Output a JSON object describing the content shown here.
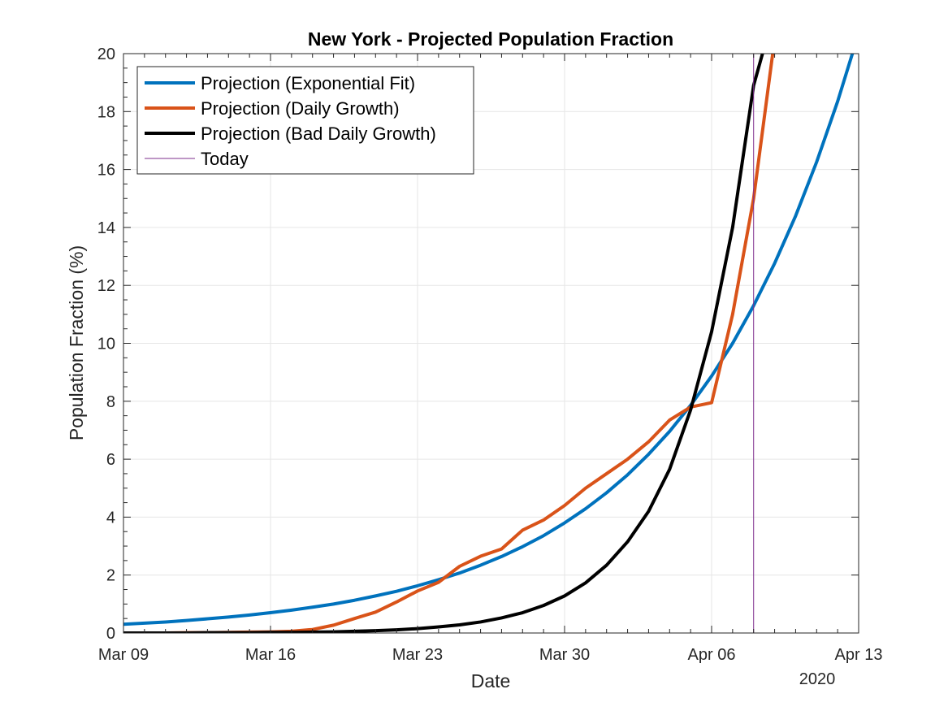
{
  "chart_data": {
    "type": "line",
    "title": "New York - Projected Population Fraction",
    "xlabel": "Date",
    "ylabel": "Population Fraction (%)",
    "x_year_label": "2020",
    "xlim": [
      "2020-03-09",
      "2020-04-13"
    ],
    "ylim": [
      0,
      20
    ],
    "x_ticks": [
      "Mar 09",
      "Mar 16",
      "Mar 23",
      "Mar 30",
      "Apr 06",
      "Apr 13"
    ],
    "x_tick_dates": [
      "2020-03-09",
      "2020-03-16",
      "2020-03-23",
      "2020-03-30",
      "2020-04-06",
      "2020-04-13"
    ],
    "y_ticks": [
      "0",
      "2",
      "4",
      "6",
      "8",
      "10",
      "12",
      "14",
      "16",
      "18",
      "20"
    ],
    "grid": true,
    "legend_position": "top-left",
    "series": [
      {
        "name": "Projection (Exponential Fit)",
        "color": "#0072BD",
        "x": [
          "2020-03-09",
          "2020-03-10",
          "2020-03-11",
          "2020-03-12",
          "2020-03-13",
          "2020-03-14",
          "2020-03-15",
          "2020-03-16",
          "2020-03-17",
          "2020-03-18",
          "2020-03-19",
          "2020-03-20",
          "2020-03-21",
          "2020-03-22",
          "2020-03-23",
          "2020-03-24",
          "2020-03-25",
          "2020-03-26",
          "2020-03-27",
          "2020-03-28",
          "2020-03-29",
          "2020-03-30",
          "2020-03-31",
          "2020-04-01",
          "2020-04-02",
          "2020-04-03",
          "2020-04-04",
          "2020-04-05",
          "2020-04-06",
          "2020-04-07",
          "2020-04-08",
          "2020-04-09",
          "2020-04-10",
          "2020-04-11",
          "2020-04-12",
          "2020-04-13"
        ],
        "y": [
          0.3,
          0.34,
          0.38,
          0.43,
          0.49,
          0.55,
          0.62,
          0.7,
          0.79,
          0.89,
          1.0,
          1.13,
          1.28,
          1.44,
          1.63,
          1.84,
          2.07,
          2.34,
          2.64,
          2.98,
          3.36,
          3.8,
          4.29,
          4.84,
          5.46,
          6.17,
          6.96,
          7.86,
          8.87,
          10.0,
          11.3,
          12.76,
          14.4,
          16.26,
          18.35,
          20.7
        ]
      },
      {
        "name": "Projection (Daily Growth)",
        "color": "#D95319",
        "x": [
          "2020-03-09",
          "2020-03-10",
          "2020-03-11",
          "2020-03-12",
          "2020-03-13",
          "2020-03-14",
          "2020-03-15",
          "2020-03-16",
          "2020-03-17",
          "2020-03-18",
          "2020-03-19",
          "2020-03-20",
          "2020-03-21",
          "2020-03-22",
          "2020-03-23",
          "2020-03-24",
          "2020-03-25",
          "2020-03-26",
          "2020-03-27",
          "2020-03-28",
          "2020-03-29",
          "2020-03-30",
          "2020-03-31",
          "2020-04-01",
          "2020-04-02",
          "2020-04-03",
          "2020-04-04",
          "2020-04-05",
          "2020-04-06",
          "2020-04-07",
          "2020-04-08",
          "2020-04-09"
        ],
        "y": [
          0.0,
          0.0,
          0.0,
          0.01,
          0.01,
          0.02,
          0.03,
          0.04,
          0.06,
          0.12,
          0.27,
          0.5,
          0.72,
          1.07,
          1.45,
          1.75,
          2.3,
          2.65,
          2.9,
          3.55,
          3.9,
          4.4,
          5.0,
          5.5,
          6.0,
          6.6,
          7.35,
          7.8,
          7.95,
          11.0,
          15.0,
          20.5
        ]
      },
      {
        "name": "Projection (Bad Daily Growth)",
        "color": "#000000",
        "x": [
          "2020-03-09",
          "2020-03-10",
          "2020-03-11",
          "2020-03-12",
          "2020-03-13",
          "2020-03-14",
          "2020-03-15",
          "2020-03-16",
          "2020-03-17",
          "2020-03-18",
          "2020-03-19",
          "2020-03-20",
          "2020-03-21",
          "2020-03-22",
          "2020-03-23",
          "2020-03-24",
          "2020-03-25",
          "2020-03-26",
          "2020-03-27",
          "2020-03-28",
          "2020-03-29",
          "2020-03-30",
          "2020-03-31",
          "2020-04-01",
          "2020-04-02",
          "2020-04-03",
          "2020-04-04",
          "2020-04-05",
          "2020-04-06",
          "2020-04-07",
          "2020-04-08",
          "2020-04-09"
        ],
        "y": [
          0.0,
          0.0,
          0.0,
          0.0,
          0.01,
          0.01,
          0.01,
          0.02,
          0.02,
          0.03,
          0.04,
          0.06,
          0.08,
          0.11,
          0.15,
          0.21,
          0.28,
          0.38,
          0.52,
          0.7,
          0.95,
          1.28,
          1.73,
          2.34,
          3.15,
          4.2,
          5.65,
          7.7,
          10.4,
          14.0,
          18.9,
          21.5
        ]
      },
      {
        "name": "Today",
        "color": "#7E2F8E",
        "vertical_line_at": "2020-04-08"
      }
    ]
  }
}
